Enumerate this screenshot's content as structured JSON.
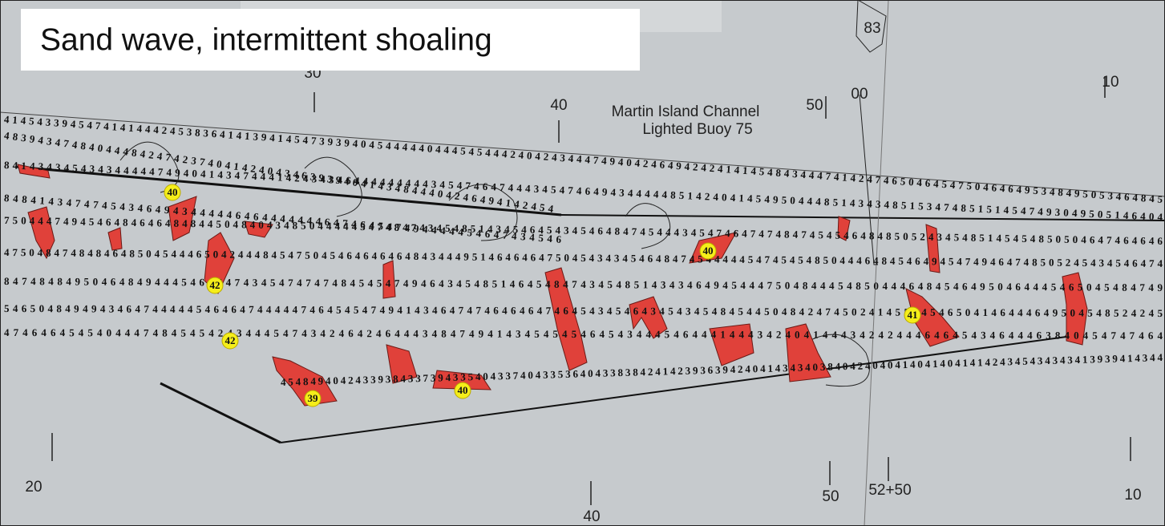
{
  "title": "Sand wave, intermittent shoaling",
  "buoy": {
    "lines": [
      "Martin Island Channel",
      "Lighted Buoy 75"
    ],
    "number": "83"
  },
  "stations": [
    "30",
    "40",
    "50",
    "00",
    "10",
    "20",
    "40",
    "50",
    "52+50",
    "10"
  ],
  "shoals": [
    "40",
    "42",
    "42",
    "39",
    "40",
    "40",
    "41"
  ],
  "soundings": [
    "41454339454741414442453836414139414547393940454444404445454442404243444749404246494242414145484344474142474650464547504646495348495053464845",
    "48394347484044484247423740414240434639394041434844404246494142454",
    "8414343454343444447494041434744414243434644444444434547464744434547464943444448514240414549504448514343485153474851514547493049505146404",
    "848414347474543464943444446464444444647464547494444454647434546",
    "75044474945464846464848445048404348504444454748474345485143454645434546484745444345474647474847454546484850524345485145454850504647464646",
    "4750484748484648504544465042444845475045464646464843444951464646475045434345464847454444454745454850444648454649454749464748505245434546474",
    "84748484950464849444546464743454747474845454749464345485146454847434548514343464945444750484445485044464845464950464445465045484749",
    "5465048494943464744444546464744444746454547494143464747464646474645434546434543454845445048424745024145504546504146444649504548524245",
    "47464645454044474845454243444547434246424644434847494143454545464543444546444144434240414443424244464645434644463840454747464",
    "4548494042433938433739433540433740433536404338384241423936394240414343403840424040414041404141424345434343413939414344"
  ]
}
